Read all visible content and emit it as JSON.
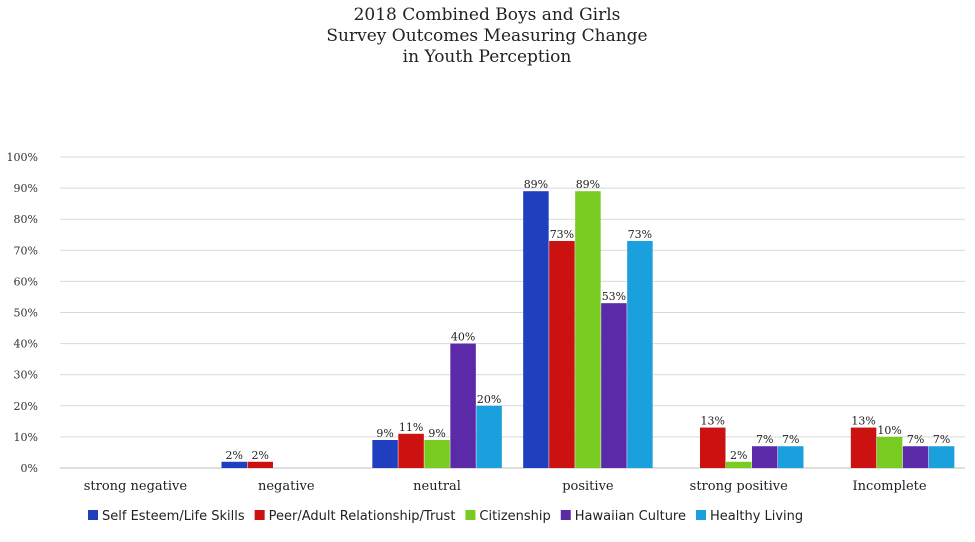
{
  "chart_data": {
    "type": "bar",
    "title_lines": [
      "2018 Combined Boys and Girls",
      "Survey Outcomes Measuring Change",
      "in Youth Perception"
    ],
    "categories": [
      "strong negative",
      "negative",
      "neutral",
      "positive",
      "strong positive",
      "Incomplete"
    ],
    "ylim": [
      0,
      100
    ],
    "yticks": [
      0,
      10,
      20,
      30,
      40,
      50,
      60,
      70,
      80,
      90,
      100
    ],
    "ytick_labels": [
      "0%",
      "10%",
      "20%",
      "30%",
      "40%",
      "50%",
      "60%",
      "70%",
      "80%",
      "90%",
      "100%"
    ],
    "grid": true,
    "legend_position": "bottom",
    "series": [
      {
        "name": "Self Esteem/Life Skills",
        "color": "#1f3fbf",
        "values": [
          null,
          2,
          9,
          89,
          null,
          null
        ],
        "labels": [
          null,
          "2%",
          "9%",
          "89%",
          null,
          null
        ]
      },
      {
        "name": "Peer/Adult Relationship/Trust",
        "color": "#cc1111",
        "values": [
          null,
          2,
          11,
          73,
          13,
          13
        ],
        "labels": [
          null,
          "2%",
          "11%",
          "73%",
          "13%",
          "13%"
        ]
      },
      {
        "name": "Citizenship",
        "color": "#77cc1f",
        "values": [
          null,
          null,
          9,
          89,
          2,
          10
        ],
        "labels": [
          null,
          null,
          "9%",
          "89%",
          "2%",
          "10%"
        ]
      },
      {
        "name": "Hawaiian Culture",
        "color": "#5b2aa8",
        "values": [
          null,
          null,
          40,
          53,
          7,
          7
        ],
        "labels": [
          null,
          null,
          "40%",
          "53%",
          "7%",
          "7%"
        ]
      },
      {
        "name": "Healthy Living",
        "color": "#1aa0dc",
        "values": [
          null,
          null,
          20,
          73,
          7,
          7
        ],
        "labels": [
          null,
          null,
          "20%",
          "73%",
          "7%",
          "7%"
        ]
      }
    ]
  }
}
